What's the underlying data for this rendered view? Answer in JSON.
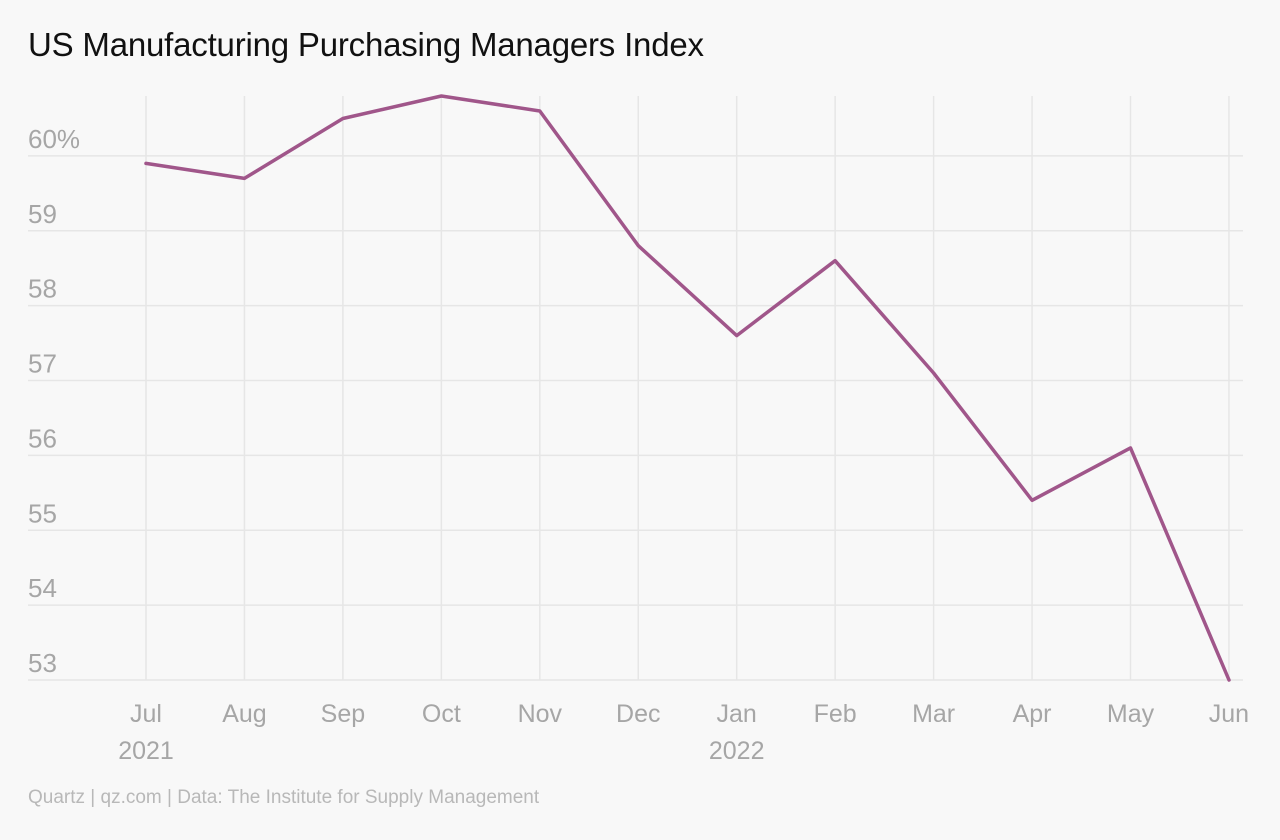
{
  "colors": {
    "background": "#f8f8f8",
    "line": "#a0568a",
    "grid": "#e6e6e6",
    "tick_text": "#a6a6a6",
    "title_text": "#111111",
    "credit_text": "#b8b8b8"
  },
  "chart_data": {
    "type": "line",
    "title": "US Manufacturing Purchasing Managers Index",
    "xlabel": "",
    "ylabel": "",
    "categories": [
      "Jul",
      "Aug",
      "Sep",
      "Oct",
      "Nov",
      "Dec",
      "Jan",
      "Feb",
      "Mar",
      "Apr",
      "May",
      "Jun"
    ],
    "year_labels": [
      {
        "category": "Jul",
        "label": "2021"
      },
      {
        "category": "Jan",
        "label": "2022"
      }
    ],
    "series": [
      {
        "values": [
          59.9,
          59.7,
          60.5,
          60.8,
          60.6,
          58.8,
          57.6,
          58.6,
          57.1,
          55.4,
          56.1,
          53.0
        ]
      }
    ],
    "y_ticks": [
      {
        "value": 53,
        "label": "53"
      },
      {
        "value": 54,
        "label": "54"
      },
      {
        "value": 55,
        "label": "55"
      },
      {
        "value": 56,
        "label": "56"
      },
      {
        "value": 57,
        "label": "57"
      },
      {
        "value": 58,
        "label": "58"
      },
      {
        "value": 59,
        "label": "59"
      },
      {
        "value": 60,
        "label": "60%"
      }
    ],
    "ylim": [
      53,
      60.8
    ],
    "grid": true,
    "legend": "none"
  },
  "footer": {
    "credit": "Quartz | qz.com | Data: The Institute for Supply Management"
  }
}
